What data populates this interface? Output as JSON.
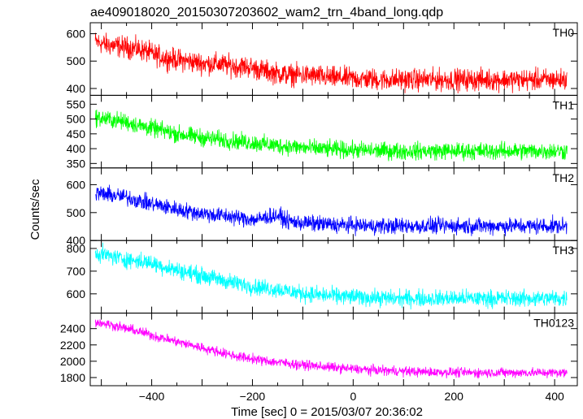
{
  "chart_data": {
    "type": "line",
    "title": "ae409018020_20150307203602_wam2_trn_4band_long.qdp",
    "xlabel": "Time [sec] 0 = 2015/03/07 20:36:02",
    "ylabel": "Counts/sec",
    "xlim": [
      -522,
      445
    ],
    "xticks": [
      -400,
      -200,
      0,
      200,
      400
    ],
    "grid": false,
    "panels": [
      {
        "name": "TH0",
        "color": "#ff0000",
        "ylim": [
          375,
          640
        ],
        "yticks": [
          400,
          500,
          600
        ],
        "x": [
          -510,
          -490,
          -470,
          -450,
          -430,
          -410,
          -390,
          -370,
          -350,
          -330,
          -310,
          -290,
          -270,
          -250,
          -230,
          -210,
          -190,
          -170,
          -150,
          -130,
          -110,
          -90,
          -70,
          -50,
          -30,
          -10,
          10,
          30,
          50,
          70,
          90,
          110,
          130,
          150,
          170,
          190,
          210,
          230,
          250,
          270,
          290,
          310,
          330,
          350,
          370,
          390,
          410,
          425
        ],
        "y": [
          570,
          560,
          555,
          550,
          545,
          535,
          520,
          510,
          505,
          500,
          495,
          490,
          490,
          485,
          480,
          480,
          470,
          462,
          455,
          450,
          450,
          448,
          445,
          440,
          438,
          438,
          435,
          435,
          432,
          432,
          432,
          432,
          432,
          432,
          432,
          432,
          432,
          432,
          432,
          432,
          432,
          432,
          432,
          432,
          432,
          432,
          432,
          432
        ],
        "noise": 30
      },
      {
        "name": "TH1",
        "color": "#00ff00",
        "ylim": [
          335,
          580
        ],
        "yticks": [
          350,
          400,
          450,
          500,
          550
        ],
        "x": [
          -510,
          -490,
          -470,
          -450,
          -430,
          -410,
          -390,
          -370,
          -350,
          -330,
          -310,
          -290,
          -270,
          -250,
          -230,
          -210,
          -190,
          -170,
          -150,
          -130,
          -110,
          -90,
          -70,
          -50,
          -30,
          -10,
          10,
          30,
          50,
          70,
          90,
          110,
          130,
          150,
          170,
          190,
          210,
          230,
          250,
          270,
          290,
          310,
          330,
          350,
          370,
          390,
          410,
          425
        ],
        "y": [
          505,
          500,
          495,
          490,
          480,
          472,
          465,
          458,
          450,
          445,
          440,
          435,
          432,
          428,
          425,
          422,
          418,
          414,
          410,
          408,
          405,
          402,
          400,
          398,
          397,
          396,
          395,
          394,
          393,
          392,
          392,
          392,
          392,
          392,
          392,
          392,
          392,
          392,
          392,
          392,
          392,
          392,
          392,
          392,
          392,
          392,
          392,
          392
        ],
        "noise": 22
      },
      {
        "name": "TH2",
        "color": "#0000ff",
        "ylim": [
          400,
          660
        ],
        "yticks": [
          400,
          500,
          600
        ],
        "x": [
          -510,
          -490,
          -470,
          -450,
          -430,
          -410,
          -390,
          -370,
          -350,
          -330,
          -310,
          -290,
          -270,
          -250,
          -230,
          -210,
          -190,
          -170,
          -150,
          -130,
          -110,
          -90,
          -70,
          -50,
          -30,
          -10,
          10,
          30,
          50,
          70,
          90,
          110,
          130,
          150,
          170,
          190,
          210,
          230,
          250,
          270,
          290,
          310,
          330,
          350,
          370,
          390,
          410,
          425
        ],
        "y": [
          570,
          565,
          560,
          555,
          545,
          535,
          528,
          520,
          512,
          505,
          500,
          495,
          490,
          488,
          482,
          478,
          475,
          485,
          490,
          470,
          465,
          462,
          460,
          458,
          455,
          455,
          455,
          452,
          452,
          452,
          452,
          452,
          452,
          452,
          452,
          452,
          452,
          452,
          452,
          452,
          452,
          452,
          452,
          452,
          452,
          452,
          452,
          452
        ],
        "noise": 22
      },
      {
        "name": "TH3",
        "color": "#00ffff",
        "ylim": [
          515,
          835
        ],
        "yticks": [
          600,
          700,
          800
        ],
        "x": [
          -510,
          -490,
          -470,
          -450,
          -430,
          -410,
          -390,
          -370,
          -350,
          -330,
          -310,
          -290,
          -270,
          -250,
          -230,
          -210,
          -190,
          -170,
          -150,
          -130,
          -110,
          -90,
          -70,
          -50,
          -30,
          -10,
          10,
          30,
          50,
          70,
          90,
          110,
          130,
          150,
          170,
          190,
          210,
          230,
          250,
          270,
          290,
          310,
          330,
          350,
          370,
          390,
          410,
          425
        ],
        "y": [
          780,
          770,
          760,
          752,
          745,
          740,
          730,
          715,
          705,
          695,
          685,
          675,
          665,
          655,
          645,
          638,
          630,
          625,
          620,
          612,
          605,
          600,
          595,
          592,
          590,
          588,
          586,
          584,
          582,
          580,
          580,
          580,
          580,
          580,
          580,
          580,
          580,
          580,
          580,
          580,
          580,
          580,
          580,
          580,
          580,
          580,
          580,
          580
        ],
        "noise": 28
      },
      {
        "name": "TH0123",
        "color": "#ff00ff",
        "ylim": [
          1700,
          2590
        ],
        "yticks": [
          1800,
          2000,
          2200,
          2400
        ],
        "x": [
          -510,
          -490,
          -470,
          -450,
          -430,
          -410,
          -390,
          -370,
          -350,
          -330,
          -310,
          -290,
          -270,
          -250,
          -230,
          -210,
          -190,
          -170,
          -150,
          -130,
          -110,
          -90,
          -70,
          -50,
          -30,
          -10,
          10,
          30,
          50,
          70,
          90,
          110,
          130,
          150,
          170,
          190,
          210,
          230,
          250,
          270,
          290,
          310,
          330,
          350,
          370,
          390,
          410,
          425
        ],
        "y": [
          2480,
          2460,
          2430,
          2400,
          2370,
          2340,
          2300,
          2270,
          2240,
          2210,
          2180,
          2150,
          2120,
          2090,
          2060,
          2040,
          2020,
          2000,
          1990,
          1975,
          1960,
          1950,
          1940,
          1930,
          1920,
          1910,
          1900,
          1895,
          1890,
          1885,
          1880,
          1875,
          1870,
          1868,
          1866,
          1864,
          1862,
          1860,
          1860,
          1860,
          1860,
          1860,
          1860,
          1860,
          1860,
          1860,
          1860,
          1860
        ],
        "noise": 45
      }
    ]
  }
}
